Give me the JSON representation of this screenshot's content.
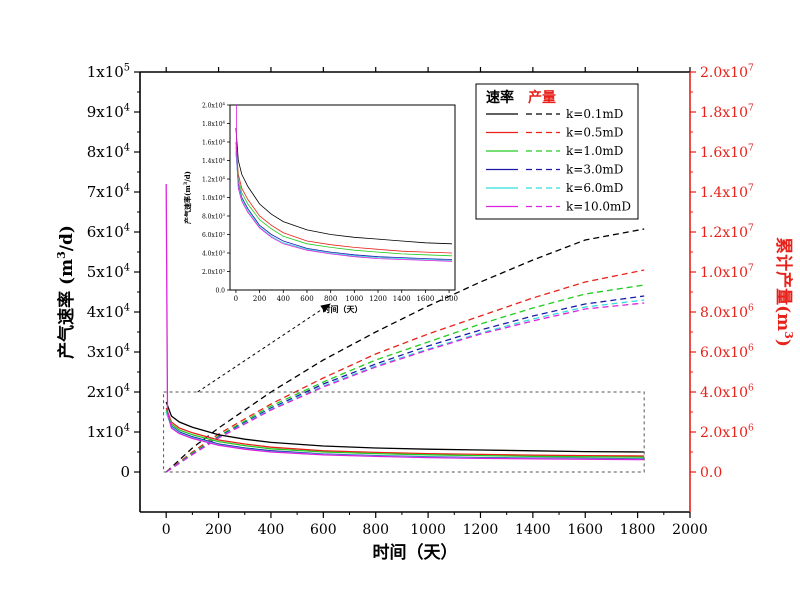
{
  "chart_data": [
    {
      "type": "line",
      "id": "main",
      "xlabel": "时间（天）",
      "ylabel_left": "产气速率 (m3/d)",
      "ylabel_right": "累计产量(m3)",
      "xlim": [
        -100,
        2000
      ],
      "x_ticks": [
        0,
        200,
        400,
        600,
        800,
        1000,
        1200,
        1400,
        1600,
        1800,
        2000
      ],
      "ylim_left": [
        -10000,
        100000
      ],
      "ylim_right": [
        -2000000,
        20000000
      ],
      "left_ticks": [
        {
          "v": 0,
          "m": "0",
          "e": ""
        },
        {
          "v": 10000,
          "m": "1x10",
          "e": "4"
        },
        {
          "v": 20000,
          "m": "2x10",
          "e": "4"
        },
        {
          "v": 30000,
          "m": "3x10",
          "e": "4"
        },
        {
          "v": 40000,
          "m": "4x10",
          "e": "4"
        },
        {
          "v": 50000,
          "m": "5x10",
          "e": "4"
        },
        {
          "v": 60000,
          "m": "6x10",
          "e": "4"
        },
        {
          "v": 70000,
          "m": "7x10",
          "e": "4"
        },
        {
          "v": 80000,
          "m": "8x10",
          "e": "4"
        },
        {
          "v": 90000,
          "m": "9x10",
          "e": "4"
        },
        {
          "v": 100000,
          "m": "1x10",
          "e": "5"
        }
      ],
      "right_ticks": [
        {
          "v": 0,
          "m": "0.0",
          "e": ""
        },
        {
          "v": 2000000,
          "m": "2.0x10",
          "e": "6"
        },
        {
          "v": 4000000,
          "m": "4.0x10",
          "e": "6"
        },
        {
          "v": 6000000,
          "m": "6.0x10",
          "e": "6"
        },
        {
          "v": 8000000,
          "m": "8.0x10",
          "e": "6"
        },
        {
          "v": 10000000,
          "m": "1.0x10",
          "e": "7"
        },
        {
          "v": 12000000,
          "m": "1.2x10",
          "e": "7"
        },
        {
          "v": 14000000,
          "m": "1.4x10",
          "e": "7"
        },
        {
          "v": 16000000,
          "m": "1.6x10",
          "e": "7"
        },
        {
          "v": 18000000,
          "m": "1.8x10",
          "e": "7"
        },
        {
          "v": 20000000,
          "m": "2.0x10",
          "e": "7"
        }
      ],
      "legend": {
        "rate_header": "速率",
        "cum_header": "产量",
        "placement": "top-right",
        "entries": [
          "k=0.1mD",
          "k=0.5mD",
          "k=1.0mD",
          "k=3.0mD",
          "k=6.0mD",
          "k=10.0mD"
        ]
      },
      "series": [
        {
          "name": "k=0.1mD",
          "color": "#000000",
          "rate": [
            [
              0,
              17500
            ],
            [
              20,
              14000
            ],
            [
              50,
              12500
            ],
            [
              100,
              11200
            ],
            [
              200,
              9300
            ],
            [
              300,
              8200
            ],
            [
              400,
              7400
            ],
            [
              600,
              6500
            ],
            [
              800,
              6000
            ],
            [
              1000,
              5700
            ],
            [
              1200,
              5500
            ],
            [
              1400,
              5300
            ],
            [
              1600,
              5100
            ],
            [
              1825,
              5000
            ]
          ],
          "cumulative": [
            [
              0,
              0
            ],
            [
              100,
              1200000
            ],
            [
              200,
              2200000
            ],
            [
              400,
              4000000
            ],
            [
              600,
              5600000
            ],
            [
              800,
              7000000
            ],
            [
              1000,
              8300000
            ],
            [
              1200,
              9500000
            ],
            [
              1400,
              10600000
            ],
            [
              1600,
              11600000
            ],
            [
              1825,
              12150000
            ]
          ]
        },
        {
          "name": "k=0.5mD",
          "color": "#e8221b",
          "rate": [
            [
              0,
              16000
            ],
            [
              20,
              12500
            ],
            [
              50,
              11000
            ],
            [
              100,
              9800
            ],
            [
              200,
              8000
            ],
            [
              300,
              7000
            ],
            [
              400,
              6200
            ],
            [
              600,
              5300
            ],
            [
              800,
              4900
            ],
            [
              1000,
              4600
            ],
            [
              1200,
              4400
            ],
            [
              1400,
              4200
            ],
            [
              1600,
              4100
            ],
            [
              1825,
              4000
            ]
          ],
          "cumulative": [
            [
              0,
              0
            ],
            [
              100,
              1000000
            ],
            [
              200,
              1900000
            ],
            [
              400,
              3400000
            ],
            [
              600,
              4700000
            ],
            [
              800,
              5900000
            ],
            [
              1000,
              6900000
            ],
            [
              1200,
              7800000
            ],
            [
              1400,
              8700000
            ],
            [
              1600,
              9500000
            ],
            [
              1825,
              10100000
            ]
          ]
        },
        {
          "name": "k=1.0mD",
          "color": "#22cc22",
          "rate": [
            [
              0,
              15500
            ],
            [
              20,
              12000
            ],
            [
              50,
              10500
            ],
            [
              100,
              9300
            ],
            [
              200,
              7600
            ],
            [
              300,
              6600
            ],
            [
              400,
              5800
            ],
            [
              600,
              5000
            ],
            [
              800,
              4600
            ],
            [
              1000,
              4300
            ],
            [
              1200,
              4100
            ],
            [
              1400,
              3900
            ],
            [
              1600,
              3800
            ],
            [
              1825,
              3700
            ]
          ],
          "cumulative": [
            [
              0,
              0
            ],
            [
              100,
              950000
            ],
            [
              200,
              1800000
            ],
            [
              400,
              3300000
            ],
            [
              600,
              4500000
            ],
            [
              800,
              5600000
            ],
            [
              1000,
              6500000
            ],
            [
              1200,
              7400000
            ],
            [
              1400,
              8200000
            ],
            [
              1600,
              8900000
            ],
            [
              1825,
              9350000
            ]
          ]
        },
        {
          "name": "k=3.0mD",
          "color": "#1a1aaa",
          "rate": [
            [
              0,
              15000
            ],
            [
              20,
              11500
            ],
            [
              50,
              10000
            ],
            [
              100,
              8800
            ],
            [
              200,
              7000
            ],
            [
              300,
              6000
            ],
            [
              400,
              5300
            ],
            [
              600,
              4500
            ],
            [
              800,
              4100
            ],
            [
              1000,
              3800
            ],
            [
              1200,
              3600
            ],
            [
              1400,
              3500
            ],
            [
              1600,
              3400
            ],
            [
              1825,
              3300
            ]
          ],
          "cumulative": [
            [
              0,
              0
            ],
            [
              100,
              900000
            ],
            [
              200,
              1750000
            ],
            [
              400,
              3200000
            ],
            [
              600,
              4400000
            ],
            [
              800,
              5400000
            ],
            [
              1000,
              6300000
            ],
            [
              1200,
              7100000
            ],
            [
              1400,
              7800000
            ],
            [
              1600,
              8400000
            ],
            [
              1825,
              8800000
            ]
          ]
        },
        {
          "name": "k=6.0mD",
          "color": "#33dddd",
          "rate": [
            [
              0,
              15000
            ],
            [
              20,
              11300
            ],
            [
              50,
              9800
            ],
            [
              100,
              8600
            ],
            [
              200,
              6800
            ],
            [
              300,
              5800
            ],
            [
              400,
              5100
            ],
            [
              600,
              4400
            ],
            [
              800,
              4000
            ],
            [
              1000,
              3700
            ],
            [
              1200,
              3500
            ],
            [
              1400,
              3400
            ],
            [
              1600,
              3300
            ],
            [
              1825,
              3200
            ]
          ],
          "cumulative": [
            [
              0,
              0
            ],
            [
              100,
              880000
            ],
            [
              200,
              1720000
            ],
            [
              400,
              3150000
            ],
            [
              600,
              4300000
            ],
            [
              800,
              5300000
            ],
            [
              1000,
              6150000
            ],
            [
              1200,
              6950000
            ],
            [
              1400,
              7650000
            ],
            [
              1600,
              8250000
            ],
            [
              1825,
              8600000
            ]
          ]
        },
        {
          "name": "k=10.0mD",
          "color": "#dd22dd",
          "rate": [
            [
              0,
              72000
            ],
            [
              5,
              15000
            ],
            [
              20,
              11000
            ],
            [
              50,
              9600
            ],
            [
              100,
              8400
            ],
            [
              200,
              6700
            ],
            [
              300,
              5700
            ],
            [
              400,
              5000
            ],
            [
              600,
              4300
            ],
            [
              800,
              3900
            ],
            [
              1000,
              3600
            ],
            [
              1200,
              3400
            ],
            [
              1400,
              3300
            ],
            [
              1600,
              3200
            ],
            [
              1825,
              3100
            ]
          ],
          "cumulative": [
            [
              0,
              0
            ],
            [
              100,
              870000
            ],
            [
              200,
              1700000
            ],
            [
              400,
              3100000
            ],
            [
              600,
              4250000
            ],
            [
              800,
              5250000
            ],
            [
              1000,
              6100000
            ],
            [
              1200,
              6900000
            ],
            [
              1400,
              7550000
            ],
            [
              1600,
              8150000
            ],
            [
              1825,
              8450000
            ]
          ]
        }
      ]
    },
    {
      "type": "line",
      "id": "inset",
      "xlabel": "时间（天）",
      "ylabel": "产气速率(m3/d)",
      "xlim": [
        -50,
        1850
      ],
      "x_ticks": [
        0,
        200,
        400,
        600,
        800,
        1000,
        1200,
        1400,
        1600,
        1800
      ],
      "ylim": [
        0,
        20000
      ],
      "y_ticks": [
        {
          "v": 0,
          "m": "0.0",
          "e": ""
        },
        {
          "v": 2000,
          "m": "2.0x10",
          "e": "3"
        },
        {
          "v": 4000,
          "m": "4.0x10",
          "e": "3"
        },
        {
          "v": 6000,
          "m": "6.0x10",
          "e": "3"
        },
        {
          "v": 8000,
          "m": "8.0x10",
          "e": "3"
        },
        {
          "v": 10000,
          "m": "1.0x10",
          "e": "4"
        },
        {
          "v": 12000,
          "m": "1.2x10",
          "e": "4"
        },
        {
          "v": 14000,
          "m": "1.4x10",
          "e": "4"
        },
        {
          "v": 16000,
          "m": "1.6x10",
          "e": "4"
        },
        {
          "v": 18000,
          "m": "1.8x10",
          "e": "4"
        },
        {
          "v": 20000,
          "m": "2.0x10",
          "e": "4"
        }
      ],
      "series_ref": "main"
    }
  ],
  "colors": {
    "axis": "#000000",
    "right_axis": "#e8221b",
    "zoom_box": "#555555"
  }
}
